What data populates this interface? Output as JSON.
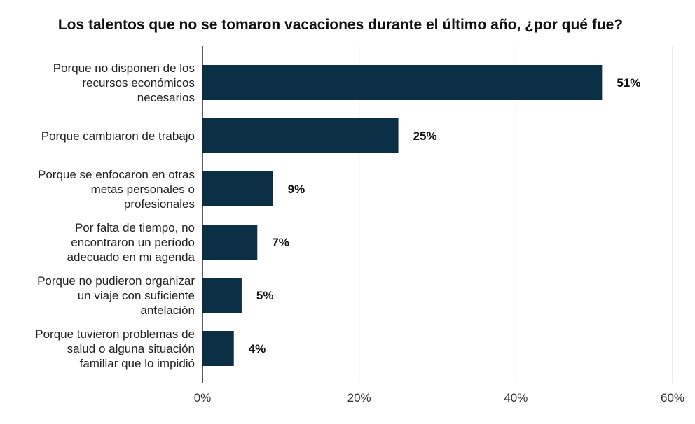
{
  "chart_data": {
    "type": "bar",
    "orientation": "horizontal",
    "title": "Los talentos que no se tomaron vacaciones durante el último año, ¿por qué fue?",
    "categories": [
      [
        "Porque no disponen de los",
        "recursos económicos",
        "necesarios"
      ],
      [
        "Porque cambiaron de trabajo"
      ],
      [
        "Porque se enfocaron en otras",
        "metas personales o",
        "profesionales"
      ],
      [
        "Por falta de tiempo, no",
        "encontraron un período",
        "adecuado en mi agenda"
      ],
      [
        "Porque no pudieron organizar",
        "un viaje con suficiente",
        "antelación"
      ],
      [
        "Porque tuvieron problemas de",
        "salud o alguna situación",
        "familiar que lo impidió"
      ]
    ],
    "values": [
      51,
      25,
      9,
      7,
      5,
      4
    ],
    "value_labels": [
      "51%",
      "25%",
      "9%",
      "7%",
      "5%",
      "4%"
    ],
    "xlim": [
      0,
      60
    ],
    "xticks": [
      0,
      20,
      40,
      60
    ],
    "xtick_labels": [
      "0%",
      "20%",
      "40%",
      "60%"
    ],
    "grid": true,
    "colors": {
      "bar": "#0b2f45",
      "grid": "#d9d9d9",
      "axis": "#222222"
    }
  }
}
